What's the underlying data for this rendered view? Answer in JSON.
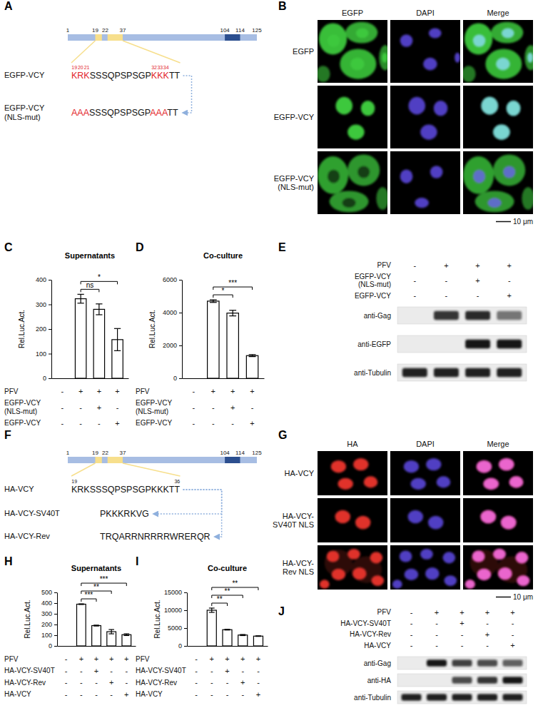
{
  "chart_data": [
    {
      "panel_label": "C",
      "type": "bar",
      "title": "Supernatants",
      "y_label": "Rel.Luc.Act.",
      "color": "#ffffff",
      "categories": [
        null,
        null,
        null,
        null
      ],
      "values": [
        0,
        323,
        280,
        157
      ],
      "errors": [
        null,
        18,
        22,
        45
      ],
      "ylim": [
        0,
        400
      ],
      "yticks": [
        0,
        100,
        200,
        300,
        400
      ],
      "annotations": [
        {
          "text": "ns",
          "from": 1,
          "to": 2
        },
        {
          "text": "*",
          "from": 1,
          "to": 3
        }
      ],
      "condition_table": [
        {
          "label": [
            "PFV"
          ],
          "marks": [
            "-",
            "+",
            "+",
            "+"
          ]
        },
        {
          "label": [
            "EGFP-VCY",
            "(NLS-mut)"
          ],
          "marks": [
            "-",
            "-",
            "+",
            "-"
          ]
        },
        {
          "label": [
            "EGFP-VCY"
          ],
          "marks": [
            "-",
            "-",
            "-",
            "+"
          ]
        }
      ]
    },
    {
      "panel_label": "D",
      "type": "bar",
      "title": "Co-culture",
      "y_label": "Rel.Luc.Act.",
      "color": "#ffffff",
      "categories": [
        null,
        null,
        null,
        null
      ],
      "values": [
        0,
        4700,
        3970,
        1380
      ],
      "errors": [
        null,
        80,
        170,
        60
      ],
      "ylim": [
        0,
        6000
      ],
      "yticks": [
        0,
        2000,
        4000,
        6000
      ],
      "annotations": [
        {
          "text": "*",
          "from": 1,
          "to": 2
        },
        {
          "text": "***",
          "from": 1,
          "to": 3
        }
      ],
      "condition_table": [
        {
          "label": [
            "PFV"
          ],
          "marks": [
            "-",
            "+",
            "+",
            "+"
          ]
        },
        {
          "label": [
            "EGFP-VCY",
            "(NLS-mut)"
          ],
          "marks": [
            "-",
            "-",
            "+",
            "-"
          ]
        },
        {
          "label": [
            "EGFP-VCY"
          ],
          "marks": [
            "-",
            "-",
            "-",
            "+"
          ]
        }
      ]
    },
    {
      "panel_label": "H",
      "type": "bar",
      "title": "Supernatants",
      "y_label": "Rel.Luc.Act.",
      "color": "#ffffff",
      "categories": [
        null,
        null,
        null,
        null,
        null
      ],
      "values": [
        0,
        390,
        190,
        133,
        105
      ],
      "errors": [
        null,
        3,
        4,
        20,
        8
      ],
      "ylim": [
        0,
        500
      ],
      "yticks": [
        0,
        100,
        200,
        300,
        400,
        500
      ],
      "annotations": [
        {
          "text": "***",
          "from": 1,
          "to": 2
        },
        {
          "text": "**",
          "from": 1,
          "to": 3
        },
        {
          "text": "***",
          "from": 1,
          "to": 4
        }
      ],
      "condition_table": [
        {
          "label": [
            "PFV"
          ],
          "marks": [
            "-",
            "+",
            "+",
            "+",
            "+"
          ]
        },
        {
          "label": [
            "HA-VCY-SV40T"
          ],
          "marks": [
            "-",
            "-",
            "+",
            "-",
            "-"
          ]
        },
        {
          "label": [
            "HA-VCY-Rev"
          ],
          "marks": [
            "-",
            "-",
            "-",
            "+",
            "-"
          ]
        },
        {
          "label": [
            "HA-VCY"
          ],
          "marks": [
            "-",
            "-",
            "-",
            "-",
            "+"
          ]
        }
      ]
    },
    {
      "panel_label": "I",
      "type": "bar",
      "title": "Co-culture",
      "y_label": "Rel.Luc.Act.",
      "color": "#ffffff",
      "categories": [
        null,
        null,
        null,
        null,
        null
      ],
      "values": [
        0,
        10000,
        4550,
        3050,
        2750
      ],
      "errors": [
        null,
        600,
        100,
        150,
        80
      ],
      "ylim": [
        0,
        15000
      ],
      "yticks": [
        0,
        5000,
        10000,
        15000
      ],
      "annotations": [
        {
          "text": "**",
          "from": 1,
          "to": 2
        },
        {
          "text": "**",
          "from": 1,
          "to": 3
        },
        {
          "text": "**",
          "from": 1,
          "to": 4
        }
      ],
      "condition_table": [
        {
          "label": [
            "PFV"
          ],
          "marks": [
            "-",
            "+",
            "+",
            "+",
            "+"
          ]
        },
        {
          "label": [
            "HA-VCY-SV40T"
          ],
          "marks": [
            "-",
            "-",
            "+",
            "-",
            "-"
          ]
        },
        {
          "label": [
            "HA-VCY-Rev"
          ],
          "marks": [
            "-",
            "-",
            "-",
            "+",
            "-"
          ]
        },
        {
          "label": [
            "HA-VCY"
          ],
          "marks": [
            "-",
            "-",
            "-",
            "-",
            "+"
          ]
        }
      ]
    }
  ],
  "panel_a": {
    "panel_label": "A",
    "construct": {
      "color": "#a7bde3",
      "ticks": [
        1,
        19,
        22,
        37,
        104,
        114,
        125
      ],
      "regions": [
        {
          "start": 19,
          "end": 21,
          "color": "#f7df8c"
        },
        {
          "start": 24,
          "end": 37,
          "color": "#f7df8c"
        },
        {
          "start": 104,
          "end": 114,
          "color": "#2c4f8f"
        }
      ]
    },
    "sequences": [
      {
        "label": [
          "EGFP-VCY"
        ],
        "residue_numbers": [
          19,
          20,
          21,
          32,
          33,
          34
        ],
        "segments": [
          {
            "text": "KRK",
            "color": "#e3262b"
          },
          {
            "text": "SSSQPSPSGP"
          },
          {
            "text": "KKK",
            "color": "#e3262b"
          },
          {
            "text": "TT"
          }
        ]
      },
      {
        "label": [
          "EGFP-VCY",
          "(NLS-mut)"
        ],
        "segments": [
          {
            "text": "AAA",
            "color": "#e3262b"
          },
          {
            "text": "SSSQPSPSGP"
          },
          {
            "text": "AAA",
            "color": "#e3262b"
          },
          {
            "text": "TT"
          }
        ]
      }
    ]
  },
  "panel_b": {
    "panel_label": "B",
    "columns": [
      {
        "label": "EGFP",
        "color": "#3cc83c"
      },
      {
        "label": "DAPI",
        "color": "#5a45d8"
      },
      {
        "label": "Merge"
      }
    ],
    "rows": [
      [
        "EGFP"
      ],
      [
        "EGFP-VCY"
      ],
      [
        "EGFP-VCY",
        "(NLS-mut)"
      ]
    ],
    "scale_bar": "10 μm"
  },
  "panel_e": {
    "panel_label": "E",
    "condition_table": [
      {
        "label": [
          "PFV"
        ],
        "marks": [
          "-",
          "+",
          "+",
          "+"
        ]
      },
      {
        "label": [
          "EGFP-VCY",
          "(NLS-mut)"
        ],
        "marks": [
          "-",
          "-",
          "+",
          "-"
        ]
      },
      {
        "label": [
          "EGFP-VCY"
        ],
        "marks": [
          "-",
          "-",
          "-",
          "+"
        ]
      }
    ],
    "blots": [
      {
        "label": "anti-Gag",
        "intensity": [
          0,
          0.85,
          0.9,
          0.55
        ]
      },
      {
        "label": "anti-EGFP",
        "intensity": [
          0,
          0,
          1,
          1
        ]
      },
      {
        "label": "anti-Tubulin",
        "intensity": [
          0.95,
          0.95,
          0.95,
          0.95
        ]
      }
    ]
  },
  "panel_f": {
    "panel_label": "F",
    "construct": {
      "color": "#a7bde3",
      "ticks": [
        1,
        19,
        22,
        37,
        104,
        114,
        125
      ],
      "regions": [
        {
          "start": 19,
          "end": 21,
          "color": "#f7df8c"
        },
        {
          "start": 24,
          "end": 37,
          "color": "#f7df8c"
        },
        {
          "start": 104,
          "end": 114,
          "color": "#2c4f8f"
        }
      ]
    },
    "sequences": [
      {
        "label": [
          "HA-VCY"
        ],
        "residue_numbers": [
          19,
          36
        ],
        "segments": [
          {
            "text": "KRKSSSQPSPSGPKKKTT"
          }
        ]
      },
      {
        "label": [
          "HA-VCY-SV40T"
        ],
        "segments": [
          {
            "text": "PKKKRKVG"
          }
        ]
      },
      {
        "label": [
          "HA-VCY-Rev"
        ],
        "segments": [
          {
            "text": "TRQARRNRRRRWRERQR"
          }
        ]
      }
    ]
  },
  "panel_g": {
    "panel_label": "G",
    "columns": [
      {
        "label": "HA",
        "color": "#e0302c"
      },
      {
        "label": "DAPI",
        "color": "#5a45d8"
      },
      {
        "label": "Merge"
      }
    ],
    "rows": [
      [
        "HA-VCY"
      ],
      [
        "HA-VCY-",
        "SV40T NLS"
      ],
      [
        "HA-VCY-",
        "Rev NLS"
      ]
    ],
    "scale_bar": "10 μm"
  },
  "panel_j": {
    "panel_label": "J",
    "condition_table": [
      {
        "label": [
          "PFV"
        ],
        "marks": [
          "-",
          "+",
          "+",
          "+",
          "+"
        ]
      },
      {
        "label": [
          "HA-VCY-SV40T"
        ],
        "marks": [
          "-",
          "-",
          "+",
          "-",
          "-"
        ]
      },
      {
        "label": [
          "HA-VCY-Rev"
        ],
        "marks": [
          "-",
          "-",
          "-",
          "+",
          "-"
        ]
      },
      {
        "label": [
          "HA-VCY"
        ],
        "marks": [
          "-",
          "-",
          "-",
          "-",
          "+"
        ]
      }
    ],
    "blots": [
      {
        "label": "anti-Gag",
        "intensity": [
          0,
          1,
          0.8,
          0.75,
          0.65
        ]
      },
      {
        "label": "anti-HA",
        "intensity": [
          0,
          0,
          0.75,
          0.85,
          1
        ]
      },
      {
        "label": "anti-Tubulin",
        "intensity": [
          0.95,
          0.95,
          0.95,
          0.95,
          0.95
        ]
      }
    ]
  }
}
